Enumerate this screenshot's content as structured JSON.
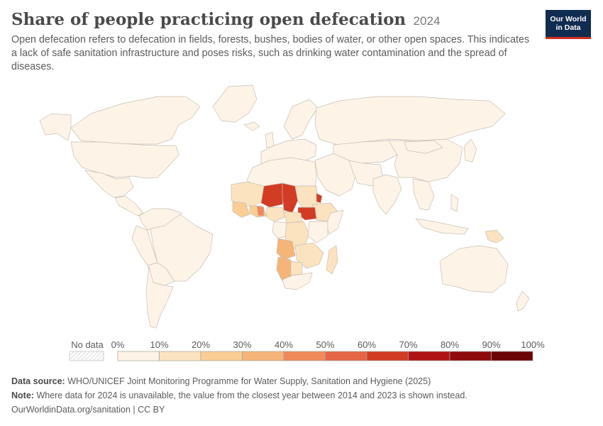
{
  "header": {
    "title": "Share of people practicing open defecation",
    "year": "2024",
    "subtitle": "Open defecation refers to defecation in fields, forests, bushes, bodies of water, or other open spaces. This indicates a lack of safe sanitation infrastructure and poses risks, such as drinking water contamination and the spread of diseases."
  },
  "logo": {
    "line1": "Our World",
    "line2": "in Data"
  },
  "legend": {
    "no_data_label": "No data",
    "ticks": [
      "0%",
      "10%",
      "20%",
      "30%",
      "40%",
      "50%",
      "60%",
      "70%",
      "80%",
      "90%",
      "100%"
    ],
    "colors": [
      "#fdf3e6",
      "#fbe3c0",
      "#f9cd93",
      "#f5b478",
      "#f0895a",
      "#e46646",
      "#d23c24",
      "#b01414",
      "#8e0b0b",
      "#6b0606"
    ]
  },
  "map_colors": {
    "ocean": "#ffffff",
    "land_default": "#fdf3e6",
    "border": "#c9c0b3"
  },
  "footer": {
    "source_label": "Data source:",
    "source_text": "WHO/UNICEF Joint Monitoring Programme for Water Supply, Sanitation and Hygiene (2025)",
    "note_label": "Note:",
    "note_text": "Where data for 2024 is unavailable, the value from the closest year between 2014 and 2023 is shown instead.",
    "credit": "OurWorldinData.org/sanitation | CC BY"
  }
}
